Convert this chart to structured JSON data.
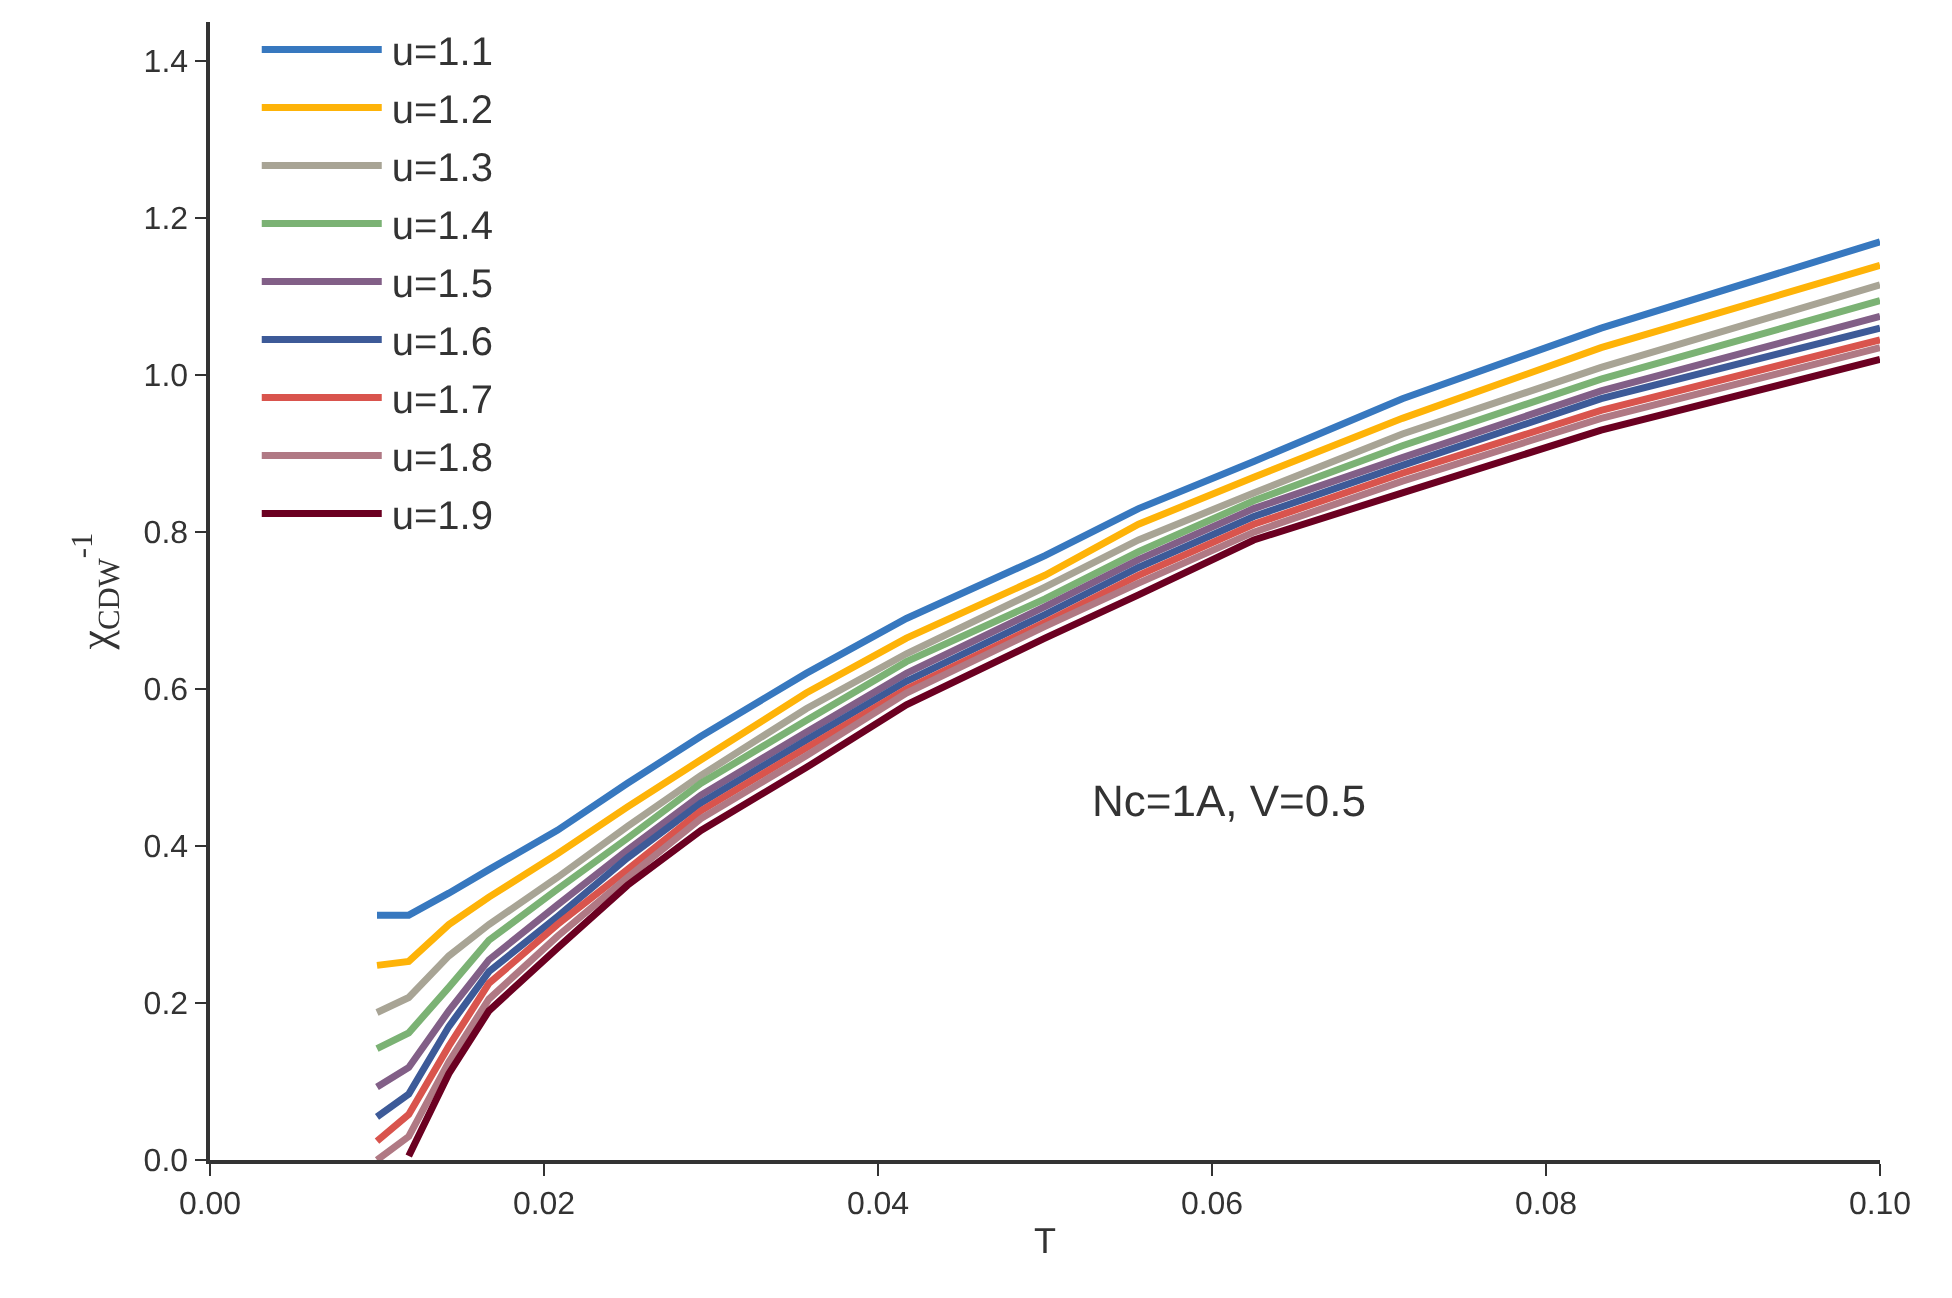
{
  "chart_data": {
    "type": "line",
    "xlabel": "T",
    "ylabel": "χ$_{CDW}$$^{-1}$",
    "annotations": [
      "Nc=1A, V=0.5"
    ],
    "x": [
      0.01,
      0.0119,
      0.0143,
      0.0167,
      0.0208,
      0.025,
      0.0294,
      0.0357,
      0.0417,
      0.05,
      0.0556,
      0.0625,
      0.0714,
      0.0833,
      0.1
    ],
    "xlim": [
      0.0,
      0.1
    ],
    "xticks": [
      {
        "value": 0.0,
        "label": "0.00"
      },
      {
        "value": 0.02,
        "label": "0.02"
      },
      {
        "value": 0.04,
        "label": "0.04"
      },
      {
        "value": 0.06,
        "label": "0.06"
      },
      {
        "value": 0.08,
        "label": "0.08"
      },
      {
        "value": 0.1,
        "label": "0.10"
      }
    ],
    "ylim": [
      0.0,
      1.45
    ],
    "yticks": [
      {
        "value": 0.0,
        "label": "0.0"
      },
      {
        "value": 0.2,
        "label": "0.2"
      },
      {
        "value": 0.4,
        "label": "0.4"
      },
      {
        "value": 0.6,
        "label": "0.6"
      },
      {
        "value": 0.8,
        "label": "0.8"
      },
      {
        "value": 1.0,
        "label": "1.0"
      },
      {
        "value": 1.2,
        "label": "1.2"
      },
      {
        "value": 1.4,
        "label": "1.4"
      }
    ],
    "grid": false,
    "legend": "top left",
    "marker": "none",
    "line_style": "solid",
    "series": [
      {
        "name": "u=1.1",
        "color": "#3778bf",
        "values": [
          0.312,
          0.312,
          0.34,
          0.37,
          0.42,
          0.48,
          0.54,
          0.62,
          0.69,
          0.77,
          0.83,
          0.89,
          0.97,
          1.06,
          1.17
        ]
      },
      {
        "name": "u=1.2",
        "color": "#feb308",
        "values": [
          0.248,
          0.253,
          0.3,
          0.335,
          0.39,
          0.45,
          0.51,
          0.595,
          0.665,
          0.745,
          0.81,
          0.87,
          0.945,
          1.035,
          1.14
        ]
      },
      {
        "name": "u=1.3",
        "color": "#a8a495",
        "values": [
          0.188,
          0.207,
          0.26,
          0.3,
          0.36,
          0.425,
          0.49,
          0.575,
          0.645,
          0.73,
          0.79,
          0.85,
          0.925,
          1.01,
          1.115
        ]
      },
      {
        "name": "u=1.4",
        "color": "#7bb274",
        "values": [
          0.142,
          0.162,
          0.22,
          0.28,
          0.345,
          0.41,
          0.48,
          0.56,
          0.635,
          0.715,
          0.775,
          0.84,
          0.91,
          0.995,
          1.095
        ]
      },
      {
        "name": "u=1.5",
        "color": "#825f87",
        "values": [
          0.093,
          0.118,
          0.19,
          0.255,
          0.325,
          0.395,
          0.465,
          0.545,
          0.62,
          0.705,
          0.765,
          0.83,
          0.895,
          0.98,
          1.075
        ]
      },
      {
        "name": "u=1.6",
        "color": "#3d5a98",
        "values": [
          0.055,
          0.084,
          0.17,
          0.24,
          0.31,
          0.385,
          0.455,
          0.535,
          0.61,
          0.695,
          0.755,
          0.82,
          0.885,
          0.97,
          1.06
        ]
      },
      {
        "name": "u=1.7",
        "color": "#d9544d",
        "values": [
          0.024,
          0.058,
          0.145,
          0.225,
          0.3,
          0.37,
          0.445,
          0.525,
          0.6,
          0.685,
          0.745,
          0.81,
          0.875,
          0.955,
          1.045
        ]
      },
      {
        "name": "u=1.8",
        "color": "#b07984",
        "values": [
          0.0,
          0.03,
          0.125,
          0.205,
          0.285,
          0.36,
          0.435,
          0.515,
          0.595,
          0.68,
          0.735,
          0.8,
          0.865,
          0.945,
          1.035
        ]
      },
      {
        "name": "u=1.9",
        "color": "#6b0021",
        "values": [
          null,
          0.005,
          0.11,
          0.19,
          0.27,
          0.35,
          0.42,
          0.5,
          0.58,
          0.665,
          0.72,
          0.79,
          0.85,
          0.93,
          1.02
        ]
      }
    ]
  }
}
